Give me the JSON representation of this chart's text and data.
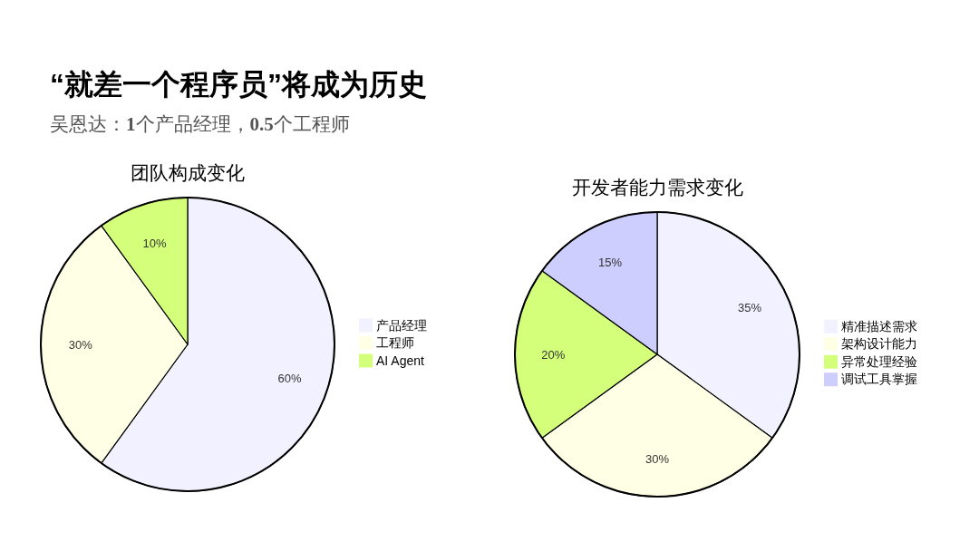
{
  "chart_data": [
    {
      "type": "other",
      "title": "“就差一个程序员”将成为历史",
      "subtitle": "吴恩达：**1**个产品经理，**0.5**个工程师"
    },
    {
      "type": "pie",
      "title": "团队构成变化",
      "categories": [
        "产品经理",
        "工程师",
        "AI Agent"
      ],
      "values": [
        60,
        30,
        10
      ],
      "colors": [
        "#f1f1ff",
        "#ffffe6",
        "#d4ff7a"
      ],
      "value_labels": [
        "60%",
        "30%",
        "10%"
      ],
      "legend": "right"
    },
    {
      "type": "pie",
      "title": "开发者能力需求变化",
      "categories": [
        "精准描述需求",
        "架构设计能力",
        "异常处理经验",
        "调试工具掌握"
      ],
      "values": [
        35,
        30,
        20,
        15
      ],
      "colors": [
        "#f1f1ff",
        "#ffffe6",
        "#d4ff7a",
        "#cdcdfe"
      ],
      "value_labels": [
        "35%",
        "30%",
        "20%",
        "15%"
      ],
      "legend": "right"
    }
  ]
}
